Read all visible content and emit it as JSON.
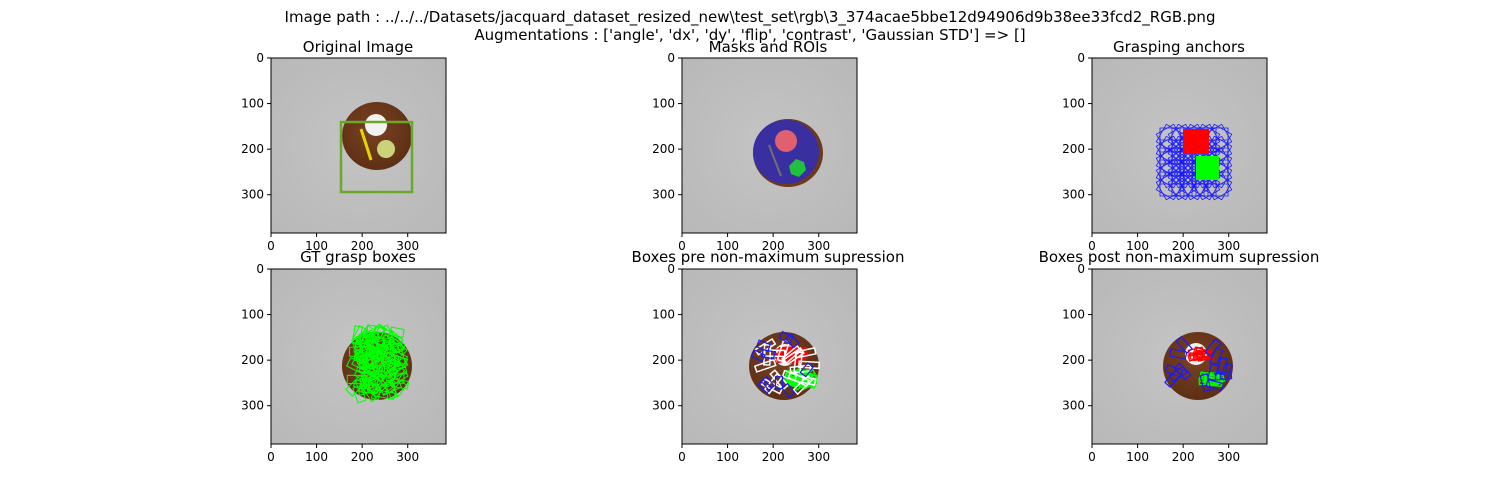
{
  "figure": {
    "suptitle_line1": "Image path : ../../../Datasets/jacquard_dataset_resized_new\\test_set\\rgb\\3_374acae5bbe12d94906d9b38ee33fcd2_RGB.png",
    "suptitle_line2": "Augmentations : ['angle', 'dx', 'dy', 'flip', 'contrast', 'Gaussian STD'] => []"
  },
  "panels": [
    {
      "title": "Original Image"
    },
    {
      "title": "Masks and ROIs"
    },
    {
      "title": "Grasping anchors"
    },
    {
      "title": "GT grasp boxes"
    },
    {
      "title": "Boxes pre non-maximum supression"
    },
    {
      "title": "Boxes post non-maximum supression"
    }
  ],
  "axes": {
    "x_ticks": [
      "0",
      "100",
      "200",
      "300"
    ],
    "y_ticks": [
      "0",
      "100",
      "200",
      "300"
    ],
    "x_range": [
      0,
      384
    ],
    "y_range": [
      0,
      384
    ]
  },
  "colors": {
    "background": "#bebebe",
    "plate": "#6e3a1c",
    "roi_box": "#6aa82a",
    "mask": "#3a2fa0",
    "anchor": "#1a1aff",
    "gt": "#00ff00",
    "red": "#ff0000",
    "white": "#ffffff"
  }
}
